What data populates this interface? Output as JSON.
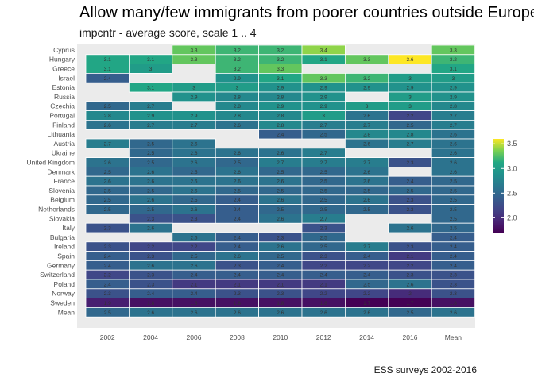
{
  "title": "Allow many/few immigrants from poorer countries outside Europe",
  "subtitle": "impcntr - average score, scale 1 .. 4",
  "caption": "ESS surveys 2002-2016",
  "chart_data": {
    "type": "heatmap",
    "columns": [
      "2002",
      "2004",
      "2006",
      "2008",
      "2010",
      "2012",
      "2014",
      "2016",
      "Mean"
    ],
    "rows": [
      "Cyprus",
      "Hungary",
      "Greece",
      "Israel",
      "Estonia",
      "Russia",
      "Czechia",
      "Portugal",
      "Finland",
      "Lithuania",
      "Austria",
      "Ukraine",
      "United Kingdom",
      "Denmark",
      "France",
      "Slovenia",
      "Belgium",
      "Netherlands",
      "Slovakia",
      "Italy",
      "Bulgaria",
      "Ireland",
      "Spain",
      "Germany",
      "Switzerland",
      "Poland",
      "Norway",
      "Sweden",
      "Mean"
    ],
    "values": [
      [
        null,
        null,
        3.3,
        3.2,
        3.2,
        3.4,
        null,
        null,
        3.3
      ],
      [
        3.1,
        3.1,
        3.3,
        3.2,
        3.2,
        3.1,
        3.3,
        3.6,
        3.2
      ],
      [
        3.1,
        3.0,
        null,
        3.2,
        3.3,
        null,
        null,
        null,
        3.1
      ],
      [
        2.4,
        null,
        null,
        2.9,
        3.1,
        3.3,
        3.2,
        3.0,
        3.0
      ],
      [
        null,
        3.1,
        3.0,
        3.0,
        2.9,
        2.9,
        2.9,
        2.9,
        2.9
      ],
      [
        null,
        null,
        2.9,
        2.8,
        2.8,
        2.9,
        null,
        3.0,
        2.9
      ],
      [
        2.5,
        2.7,
        null,
        2.8,
        2.9,
        2.9,
        3.0,
        3.0,
        2.8
      ],
      [
        2.8,
        2.9,
        2.9,
        2.8,
        2.8,
        3.0,
        2.6,
        2.2,
        2.7
      ],
      [
        2.6,
        2.7,
        2.7,
        2.6,
        2.8,
        2.7,
        2.7,
        2.5,
        2.7
      ],
      [
        null,
        null,
        null,
        null,
        2.4,
        2.5,
        2.8,
        2.8,
        2.6
      ],
      [
        2.7,
        2.5,
        2.6,
        null,
        null,
        null,
        2.6,
        2.7,
        2.6
      ],
      [
        null,
        2.5,
        2.6,
        2.6,
        2.6,
        2.7,
        null,
        null,
        2.6
      ],
      [
        2.6,
        2.5,
        2.6,
        2.5,
        2.7,
        2.7,
        2.7,
        2.3,
        2.6
      ],
      [
        2.5,
        2.6,
        2.5,
        2.6,
        2.5,
        2.5,
        2.6,
        null,
        2.6
      ],
      [
        2.6,
        2.6,
        2.6,
        2.6,
        2.6,
        2.5,
        2.6,
        2.4,
        2.5
      ],
      [
        2.5,
        2.5,
        2.6,
        2.5,
        2.5,
        2.5,
        2.5,
        2.5,
        2.5
      ],
      [
        2.5,
        2.6,
        2.5,
        2.4,
        2.6,
        2.5,
        2.6,
        2.3,
        2.5
      ],
      [
        2.5,
        2.5,
        2.6,
        2.4,
        2.5,
        2.5,
        2.5,
        2.3,
        2.5
      ],
      [
        null,
        2.3,
        2.3,
        2.4,
        2.6,
        2.7,
        null,
        null,
        2.5
      ],
      [
        2.3,
        2.6,
        null,
        null,
        null,
        2.3,
        null,
        2.6,
        2.5
      ],
      [
        null,
        null,
        2.6,
        2.4,
        2.3,
        2.5,
        null,
        null,
        2.4
      ],
      [
        2.3,
        2.2,
        2.2,
        2.4,
        2.6,
        2.5,
        2.7,
        2.3,
        2.4
      ],
      [
        2.4,
        2.3,
        2.5,
        2.6,
        2.5,
        2.3,
        2.4,
        2.1,
        2.4
      ],
      [
        2.4,
        2.6,
        2.6,
        2.3,
        2.4,
        2.2,
        2.2,
        2.2,
        2.4
      ],
      [
        2.2,
        2.3,
        2.4,
        2.4,
        2.4,
        2.4,
        2.4,
        2.3,
        2.3
      ],
      [
        2.4,
        2.3,
        2.1,
        2.1,
        2.1,
        2.1,
        2.5,
        2.6,
        2.3
      ],
      [
        2.3,
        2.4,
        2.4,
        2.3,
        2.3,
        2.2,
        2.2,
        2.0,
        2.3
      ],
      [
        1.9,
        1.8,
        1.8,
        1.8,
        1.8,
        1.8,
        1.7,
        1.7,
        1.8
      ],
      [
        2.5,
        2.6,
        2.6,
        2.6,
        2.6,
        2.6,
        2.6,
        2.5,
        2.6
      ]
    ],
    "color_scale": "viridis",
    "colorbar_range": [
      1.7,
      3.6
    ],
    "colorbar_ticks": [
      "2.0",
      "2.5",
      "3.0",
      "3.5"
    ],
    "panel_background": "#ebebeb",
    "legend_position": "right"
  }
}
